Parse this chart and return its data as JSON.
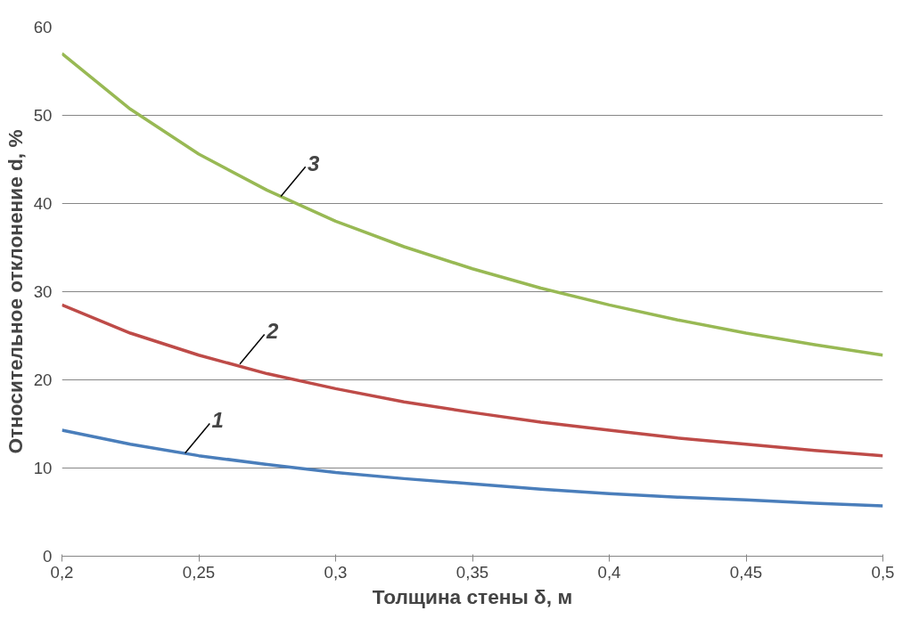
{
  "chart_data": {
    "type": "line",
    "xlabel": "Толщина стены δ, м",
    "ylabel": "Относительное отклонение d, %",
    "x": [
      0.2,
      0.225,
      0.25,
      0.275,
      0.3,
      0.325,
      0.35,
      0.375,
      0.4,
      0.425,
      0.45,
      0.475,
      0.5
    ],
    "series": [
      {
        "color": "#4a7ebb",
        "values": [
          14.3,
          12.7,
          11.4,
          10.4,
          9.5,
          8.8,
          8.2,
          7.6,
          7.1,
          6.7,
          6.4,
          6.0,
          5.7
        ]
      },
      {
        "color": "#be4b48",
        "values": [
          28.5,
          25.3,
          22.8,
          20.7,
          19.0,
          17.5,
          16.3,
          15.2,
          14.3,
          13.4,
          12.7,
          12.0,
          11.4
        ]
      },
      {
        "color": "#98b954",
        "values": [
          57.0,
          50.7,
          45.6,
          41.5,
          38.0,
          35.1,
          32.6,
          30.4,
          28.5,
          26.8,
          25.3,
          24.0,
          22.8
        ]
      }
    ],
    "annotations": [
      {
        "text": "1",
        "x": 0.245,
        "y": 11.7
      },
      {
        "text": "2",
        "x": 0.265,
        "y": 21.8
      },
      {
        "text": "3",
        "x": 0.28,
        "y": 40.8
      }
    ],
    "xlim": [
      0.2,
      0.5
    ],
    "ylim": [
      0,
      60
    ],
    "xticks": [
      {
        "value": 0.2,
        "label": "0,2"
      },
      {
        "value": 0.25,
        "label": "0,25"
      },
      {
        "value": 0.3,
        "label": "0,3"
      },
      {
        "value": 0.35,
        "label": "0,35"
      },
      {
        "value": 0.4,
        "label": "0,4"
      },
      {
        "value": 0.45,
        "label": "0,45"
      },
      {
        "value": 0.5,
        "label": "0,5"
      }
    ],
    "yticks": [
      0,
      10,
      20,
      30,
      40,
      50,
      60
    ],
    "grid": "y",
    "marker": "none",
    "line_style": "solid"
  }
}
